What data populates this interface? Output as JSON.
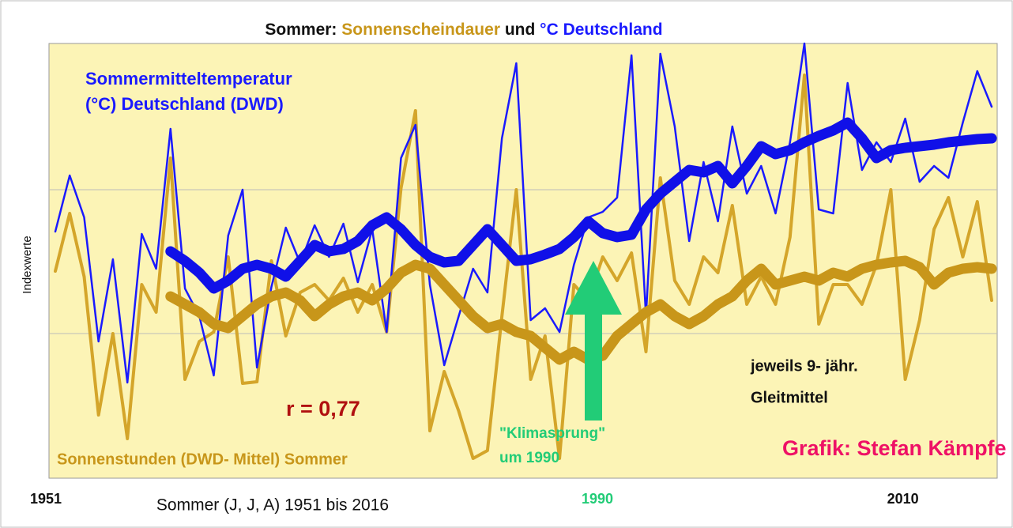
{
  "chart_data": {
    "type": "line",
    "title": [
      {
        "text": "Sommer:",
        "color": "#111111"
      },
      {
        "text": "Sonnenscheindauer",
        "color": "#c8961a"
      },
      {
        "text": "und",
        "color": "#111111"
      },
      {
        "text": "°C Deutschland",
        "color": "#1a1aff"
      }
    ],
    "x_label": "Sommer (J, J, A) 1951 bis 2016",
    "y_label": "Indexwerte",
    "annotations": [
      {
        "text": "Sommermitteltemperatur",
        "color": "#1a1aff"
      },
      {
        "text": "(°C) Deutschland (DWD)",
        "color": "#1a1aff"
      },
      {
        "text": "r = 0,77",
        "color": "#b01010"
      },
      {
        "text": "Sonnenstunden (DWD- Mittel) Sommer",
        "color": "#c8961a"
      },
      {
        "text": "\"Klimasprung\"",
        "color": "#22cc77"
      },
      {
        "text": "um 1990",
        "color": "#22cc77"
      },
      {
        "text": "jeweils 9- jähr.",
        "color": "#111111"
      },
      {
        "text": "Gleitmittel",
        "color": "#111111"
      },
      {
        "text": "Grafik: Stefan Kämpfe",
        "color": "#ee1166"
      }
    ],
    "xlim": [
      1951,
      2016
    ],
    "ylim": [
      0,
      550
    ],
    "xticks": [
      {
        "value": 1951,
        "label": "1951"
      },
      {
        "value": 1990,
        "label": "1990"
      },
      {
        "value": 2010,
        "label": "2010"
      }
    ],
    "xtick_colors": [
      "#111111",
      "#22cc77",
      "#111111"
    ],
    "x": [
      1951,
      1952,
      1953,
      1954,
      1955,
      1956,
      1957,
      1958,
      1959,
      1960,
      1961,
      1962,
      1963,
      1964,
      1965,
      1966,
      1967,
      1968,
      1969,
      1970,
      1971,
      1972,
      1973,
      1974,
      1975,
      1976,
      1977,
      1978,
      1979,
      1980,
      1981,
      1982,
      1983,
      1984,
      1985,
      1986,
      1987,
      1988,
      1989,
      1990,
      1991,
      1992,
      1993,
      1994,
      1995,
      1996,
      1997,
      1998,
      1999,
      2000,
      2001,
      2002,
      2003,
      2004,
      2005,
      2006,
      2007,
      2008,
      2009,
      2010,
      2011,
      2012,
      2013,
      2014,
      2015,
      2016
    ],
    "series": [
      {
        "color": "#d4a52a",
        "width": 4,
        "values": [
          262,
          335,
          255,
          80,
          183,
          50,
          245,
          210,
          405,
          125,
          173,
          185,
          280,
          120,
          122,
          275,
          180,
          235,
          245,
          225,
          253,
          210,
          245,
          185,
          367,
          465,
          60,
          135,
          85,
          25,
          35,
          205,
          365,
          125,
          180,
          25,
          245,
          225,
          280,
          250,
          285,
          160,
          380,
          250,
          220,
          280,
          260,
          345,
          220,
          255,
          220,
          305,
          510,
          195,
          245,
          245,
          220,
          270,
          365,
          125,
          200,
          315,
          355,
          280,
          350,
          225
        ]
      },
      {
        "color": "#1a1aff",
        "width": 2.5,
        "values": [
          312,
          383,
          330,
          173,
          277,
          121,
          309,
          265,
          442,
          240,
          205,
          130,
          307,
          365,
          140,
          242,
          317,
          272,
          320,
          280,
          322,
          248,
          315,
          185,
          405,
          447,
          245,
          143,
          205,
          265,
          235,
          430,
          525,
          200,
          215,
          185,
          270,
          330,
          337,
          355,
          535,
          205,
          537,
          445,
          300,
          400,
          325,
          445,
          360,
          395,
          335,
          425,
          550,
          340,
          335,
          500,
          390,
          425,
          400,
          455,
          375,
          395,
          380,
          450,
          515,
          470
        ]
      },
      {
        "color": "#c8961a",
        "width": 13,
        "values": [
          null,
          null,
          null,
          null,
          null,
          null,
          null,
          null,
          230,
          220,
          210,
          195,
          190,
          205,
          220,
          230,
          235,
          225,
          205,
          220,
          230,
          235,
          225,
          240,
          260,
          270,
          265,
          245,
          225,
          205,
          190,
          195,
          185,
          180,
          165,
          150,
          160,
          150,
          155,
          180,
          195,
          210,
          220,
          205,
          195,
          205,
          220,
          230,
          250,
          265,
          245,
          250,
          255,
          250,
          260,
          255,
          265,
          270,
          273,
          275,
          267,
          245,
          260,
          265,
          267,
          265
        ]
      },
      {
        "color": "#1010e8",
        "width": 13,
        "values": [
          null,
          null,
          null,
          null,
          null,
          null,
          null,
          null,
          287,
          275,
          260,
          240,
          250,
          265,
          270,
          265,
          255,
          275,
          295,
          287,
          290,
          300,
          320,
          330,
          315,
          295,
          280,
          273,
          275,
          295,
          315,
          295,
          275,
          277,
          283,
          290,
          305,
          325,
          310,
          305,
          308,
          340,
          360,
          375,
          390,
          387,
          395,
          373,
          395,
          420,
          410,
          415,
          425,
          433,
          440,
          450,
          430,
          405,
          415,
          418,
          420,
          422,
          425,
          427,
          429,
          430
        ]
      }
    ]
  }
}
